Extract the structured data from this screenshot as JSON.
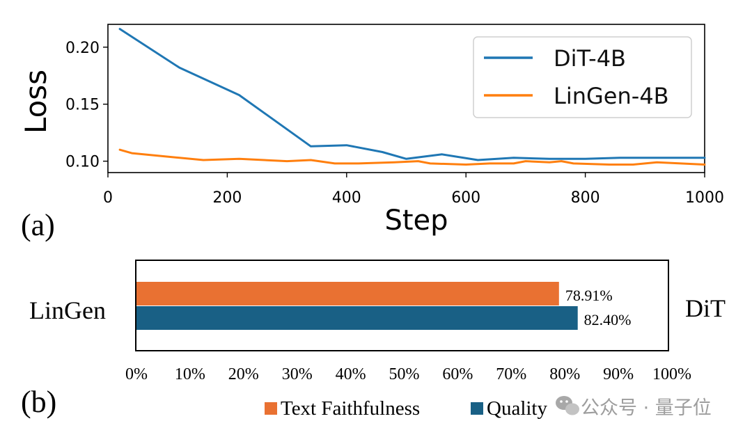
{
  "chart_data": [
    {
      "type": "line",
      "panel_label": "(a)",
      "xlabel": "Step",
      "ylabel": "Loss",
      "xlim": [
        0,
        1000
      ],
      "ylim": [
        0.09,
        0.22
      ],
      "xticks": [
        0,
        200,
        400,
        600,
        800,
        1000
      ],
      "xtick_labels": [
        "0",
        "200",
        "400",
        "600",
        "800",
        "1000"
      ],
      "yticks": [
        0.1,
        0.15,
        0.2
      ],
      "ytick_labels": [
        "0.10",
        "0.15",
        "0.20"
      ],
      "legend_position": "top-right",
      "series": [
        {
          "name": "DiT-4B",
          "color": "#1f77b4",
          "x": [
            20,
            120,
            220,
            340,
            400,
            460,
            500,
            560,
            620,
            680,
            740,
            800,
            860,
            920,
            1000
          ],
          "y": [
            0.216,
            0.182,
            0.158,
            0.113,
            0.114,
            0.108,
            0.102,
            0.106,
            0.101,
            0.103,
            0.102,
            0.102,
            0.103,
            0.103,
            0.103
          ]
        },
        {
          "name": "LinGen-4B",
          "color": "#ff7f0e",
          "x": [
            20,
            40,
            100,
            160,
            220,
            300,
            340,
            380,
            420,
            480,
            520,
            540,
            600,
            640,
            680,
            700,
            740,
            760,
            780,
            840,
            880,
            920,
            960,
            1000
          ],
          "y": [
            0.11,
            0.107,
            0.104,
            0.101,
            0.102,
            0.1,
            0.101,
            0.098,
            0.098,
            0.099,
            0.1,
            0.098,
            0.097,
            0.098,
            0.098,
            0.1,
            0.099,
            0.1,
            0.098,
            0.097,
            0.097,
            0.099,
            0.098,
            0.097
          ]
        }
      ]
    },
    {
      "type": "bar",
      "orientation": "horizontal",
      "panel_label": "(b)",
      "left_label": "LinGen",
      "right_label": "DiT",
      "xlim": [
        0,
        100
      ],
      "xtick_labels": [
        "0%",
        "10%",
        "20%",
        "30%",
        "40%",
        "50%",
        "60%",
        "70%",
        "80%",
        "90%",
        "100%"
      ],
      "legend_position": "bottom",
      "series": [
        {
          "name": "Text Faithfulness",
          "color": "#e97132",
          "value": 78.91,
          "label": "78.91%"
        },
        {
          "name": "Quality",
          "color": "#196085",
          "value": 82.4,
          "label": "82.40%"
        }
      ]
    }
  ],
  "watermark": {
    "text": "公众号 · 量子位"
  }
}
